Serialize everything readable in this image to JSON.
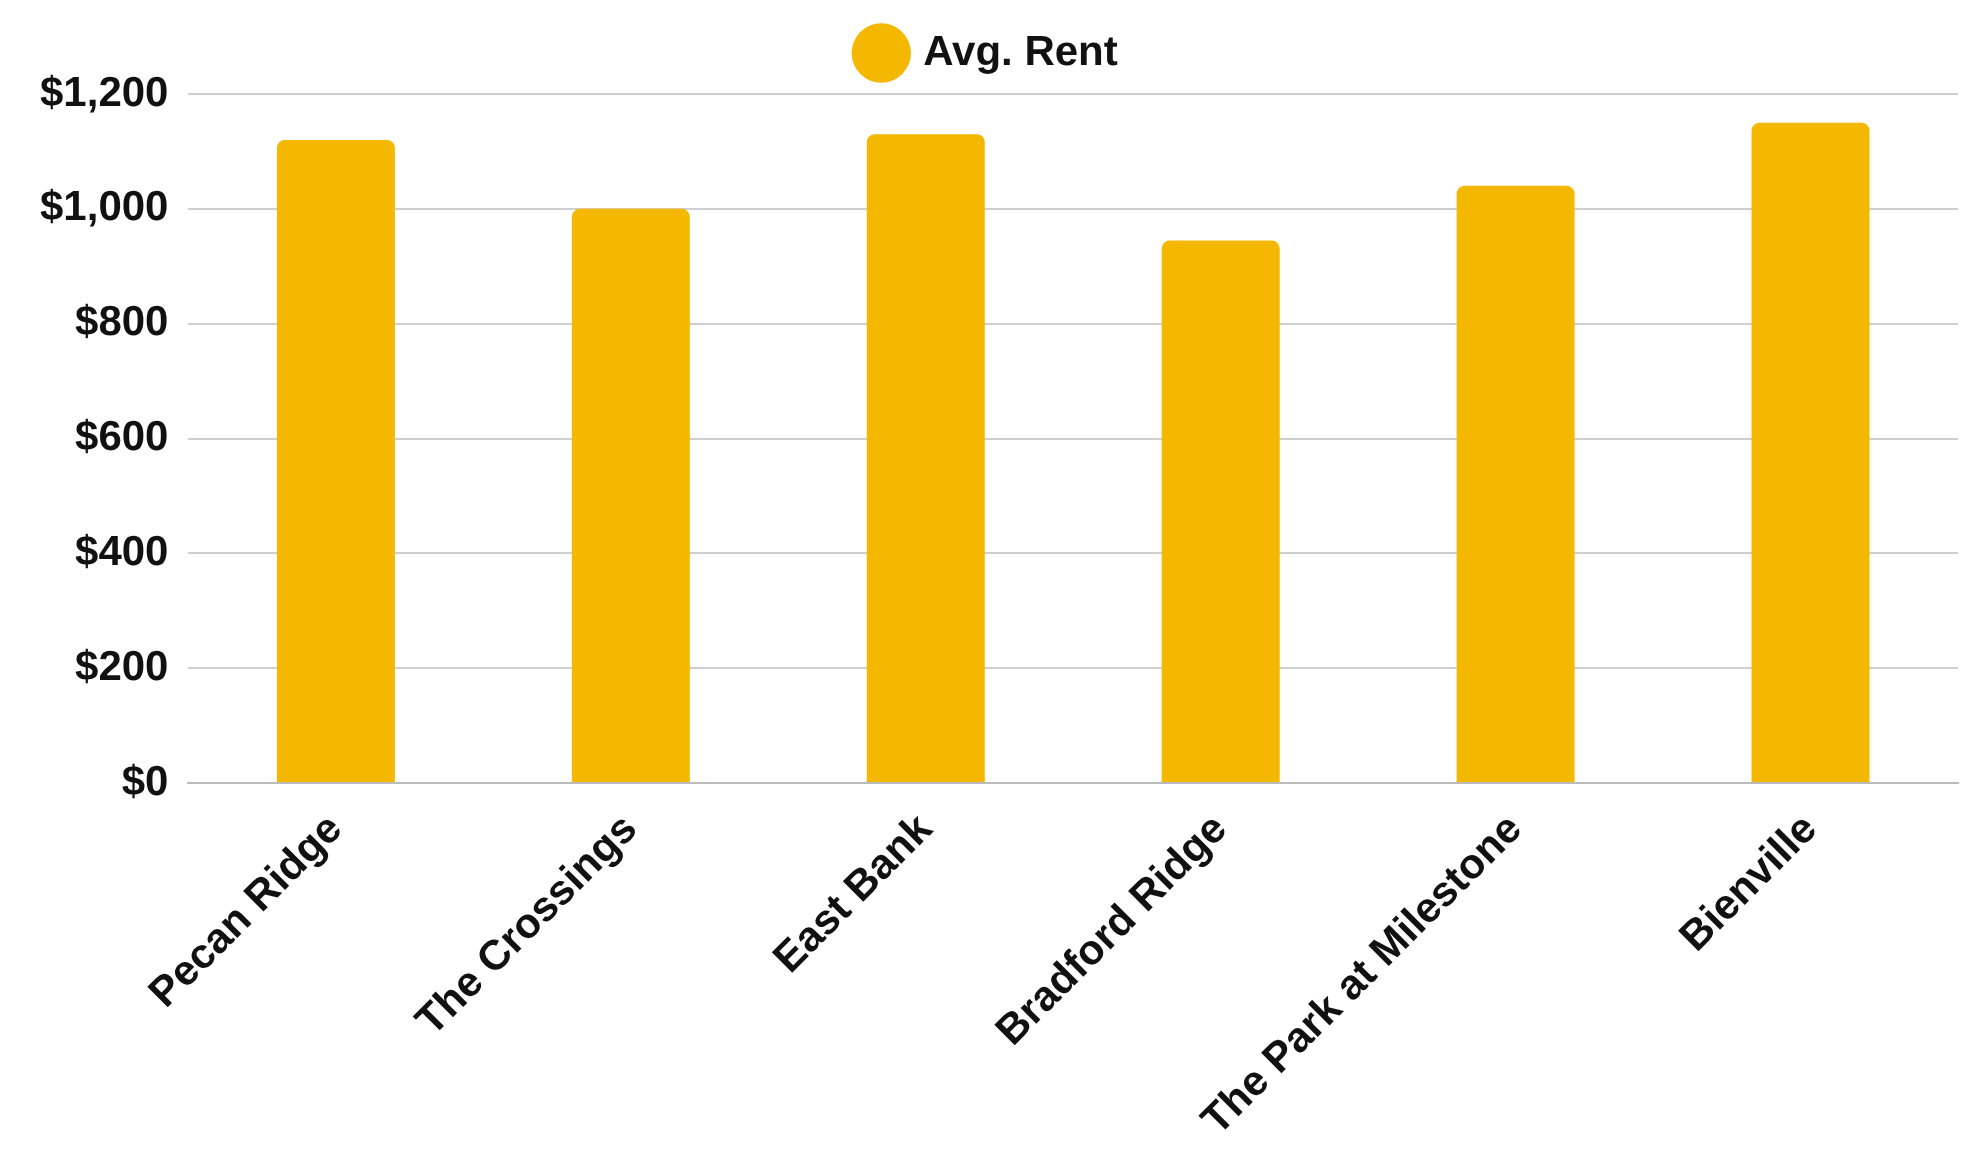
{
  "chart_data": {
    "type": "bar",
    "categories": [
      "Pecan Ridge",
      "The Crossings",
      "East Bank",
      "Bradford Ridge",
      "The Park at Milestone",
      "Bienville"
    ],
    "series": [
      {
        "name": "Avg. Rent",
        "color": "#f5b800",
        "values": [
          1120,
          1000,
          1130,
          945,
          1040,
          1150
        ]
      }
    ],
    "ylim": [
      0,
      1200
    ],
    "yticks": [
      {
        "value": 0,
        "label": "$0"
      },
      {
        "value": 200,
        "label": "$200"
      },
      {
        "value": 400,
        "label": "$400"
      },
      {
        "value": 600,
        "label": "$600"
      },
      {
        "value": 800,
        "label": "$800"
      },
      {
        "value": 1000,
        "label": "$1,000"
      },
      {
        "value": 1200,
        "label": "$1,200"
      }
    ],
    "grid": "y",
    "legend": "top"
  }
}
